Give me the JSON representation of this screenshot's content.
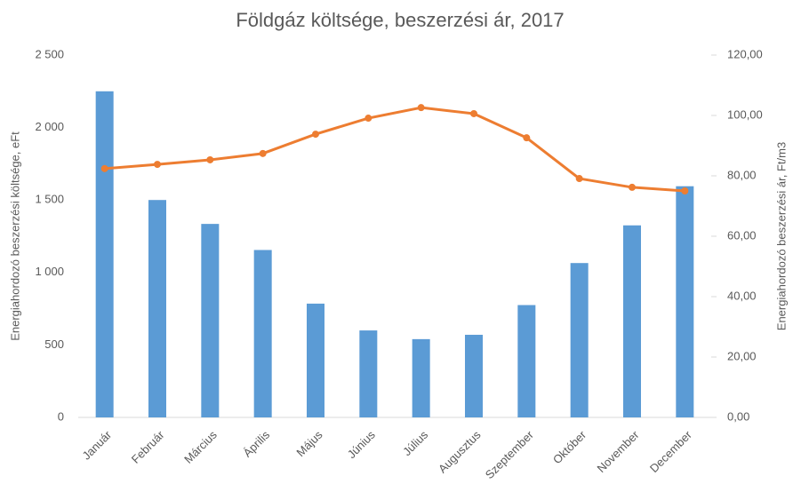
{
  "chart_data": {
    "type": "combo",
    "title": "Földgáz költsége, beszerzési ár, 2017",
    "y_label": "Energiahordozó beszerzési költsége, eFt",
    "y2_label": "Energiahordozó beszerzési ár, Ft/m3",
    "categories": [
      "Január",
      "Február",
      "Március",
      "Április",
      "Május",
      "Június",
      "Július",
      "Augusztus",
      "Szeptember",
      "Október",
      "November",
      "December"
    ],
    "series": [
      {
        "type": "bar",
        "color": "#5b9bd5",
        "values": [
          2250,
          1500,
          1335,
          1155,
          785,
          600,
          540,
          570,
          775,
          1065,
          1325,
          1595
        ]
      },
      {
        "type": "line",
        "axis": "y2",
        "color": "#ed7d31",
        "values": [
          82.4,
          83.8,
          85.3,
          87.4,
          93.8,
          99.1,
          102.6,
          100.6,
          92.6,
          79.1,
          76.2,
          75.0
        ]
      }
    ],
    "ylim": [
      0,
      2500
    ],
    "yticks": [
      0,
      500,
      {
        "value": 1000,
        "label": "1 000"
      },
      {
        "value": 1500,
        "label": "1 500"
      },
      {
        "value": 2000,
        "label": "2 000"
      },
      {
        "value": 2500,
        "label": "2 500"
      }
    ],
    "y2lim": [
      0,
      120
    ],
    "y2ticks": [
      {
        "value": 0,
        "label": "0,00"
      },
      {
        "value": 20,
        "label": "20,00"
      },
      {
        "value": 40,
        "label": "40,00"
      },
      {
        "value": 60,
        "label": "60,00"
      },
      {
        "value": 80,
        "label": "80,00"
      },
      {
        "value": 100,
        "label": "100,00"
      },
      {
        "value": 120,
        "label": "120,00"
      }
    ],
    "grid": false
  }
}
